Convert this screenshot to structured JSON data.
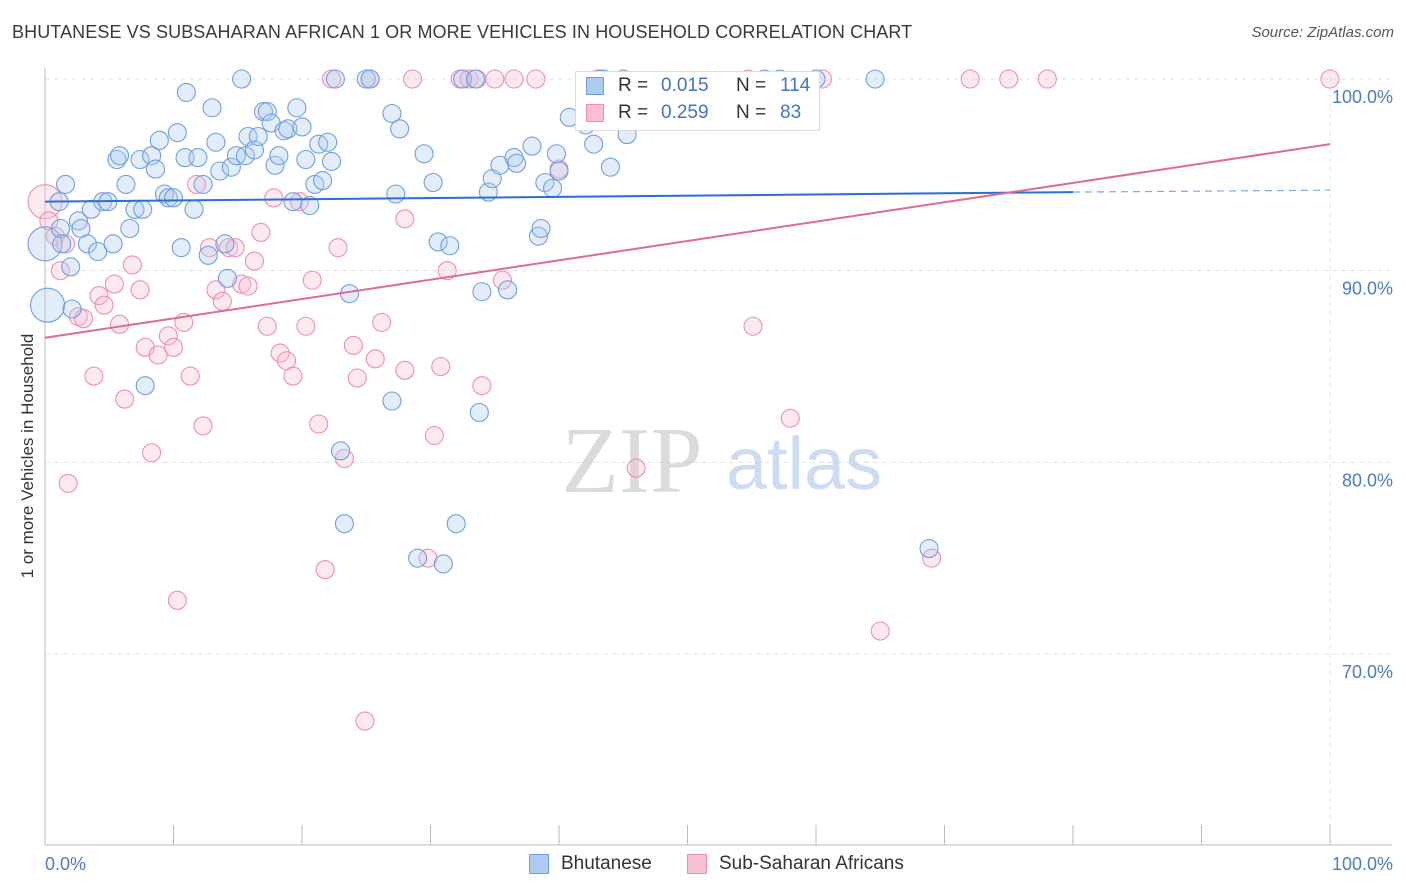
{
  "title": "BHUTANESE VS SUBSAHARAN AFRICAN 1 OR MORE VEHICLES IN HOUSEHOLD CORRELATION CHART",
  "source": "Source: ZipAtlas.com",
  "watermark": {
    "zip": "ZIP",
    "atlas": "atlas"
  },
  "legend_stats": [
    {
      "r_label": "R =",
      "r_value": "0.015",
      "n_label": "N =",
      "n_value": "114",
      "color": "#6f9fe0"
    },
    {
      "r_label": "R =",
      "r_value": "0.259",
      "n_label": "N =",
      "n_value": "83",
      "color": "#f08aaa"
    }
  ],
  "colors": {
    "blue_fill": "#aecbf0",
    "blue_stroke": "#6f9fe0",
    "blue_line": "#2a6fd6",
    "pink_fill": "#f7bfd0",
    "pink_stroke": "#ee8fae",
    "pink_line": "#e06a95",
    "tick_label": "#4a7cc4",
    "grid": "#e3e3e3"
  },
  "chart_data": {
    "type": "scatter",
    "title": "BHUTANESE VS SUBSAHARAN AFRICAN 1 OR MORE VEHICLES IN HOUSEHOLD CORRELATION CHART",
    "xlabel": "",
    "ylabel": "1 or more Vehicles in Household",
    "xlim": [
      0,
      100
    ],
    "ylim": [
      60.5,
      101
    ],
    "x_tick_labels": [
      {
        "value": 0,
        "label": "0.0%"
      },
      {
        "value": 100,
        "label": "100.0%"
      }
    ],
    "y_tick_labels": [
      {
        "value": 100,
        "label": "100.0%"
      },
      {
        "value": 90,
        "label": "90.0%"
      },
      {
        "value": 80,
        "label": "80.0%"
      },
      {
        "value": 70,
        "label": "70.0%"
      }
    ],
    "grid": true,
    "legend_position": "bottom",
    "series": [
      {
        "name": "Bhutanese",
        "color": "#6f9fe0",
        "trend": {
          "x": [
            0,
            80,
            100
          ],
          "y": [
            93.6,
            94.1,
            94.2
          ],
          "dashed_from": 80
        },
        "points": [
          {
            "x": 0.0,
            "y": 91.4,
            "big": true
          },
          {
            "x": 0.2,
            "y": 88.2,
            "big": true
          },
          {
            "x": 1.1,
            "y": 93.6
          },
          {
            "x": 1.2,
            "y": 92.2
          },
          {
            "x": 1.3,
            "y": 91.4
          },
          {
            "x": 1.6,
            "y": 94.5
          },
          {
            "x": 2.0,
            "y": 90.2
          },
          {
            "x": 2.1,
            "y": 88.0
          },
          {
            "x": 2.6,
            "y": 92.6
          },
          {
            "x": 2.8,
            "y": 92.2
          },
          {
            "x": 3.3,
            "y": 91.4
          },
          {
            "x": 3.6,
            "y": 93.2
          },
          {
            "x": 4.1,
            "y": 91.0
          },
          {
            "x": 4.5,
            "y": 93.6
          },
          {
            "x": 4.9,
            "y": 93.6
          },
          {
            "x": 5.3,
            "y": 91.4
          },
          {
            "x": 5.6,
            "y": 95.8
          },
          {
            "x": 5.8,
            "y": 96.0
          },
          {
            "x": 6.3,
            "y": 94.5
          },
          {
            "x": 6.6,
            "y": 92.2
          },
          {
            "x": 7.0,
            "y": 93.2
          },
          {
            "x": 7.4,
            "y": 95.8
          },
          {
            "x": 7.6,
            "y": 93.2
          },
          {
            "x": 7.8,
            "y": 84.0
          },
          {
            "x": 8.3,
            "y": 96.0
          },
          {
            "x": 8.6,
            "y": 95.3
          },
          {
            "x": 8.9,
            "y": 96.8
          },
          {
            "x": 9.3,
            "y": 94.0
          },
          {
            "x": 9.6,
            "y": 93.8
          },
          {
            "x": 10.0,
            "y": 93.8
          },
          {
            "x": 10.3,
            "y": 97.2
          },
          {
            "x": 10.6,
            "y": 91.2
          },
          {
            "x": 10.9,
            "y": 95.9
          },
          {
            "x": 11.0,
            "y": 99.3
          },
          {
            "x": 11.6,
            "y": 93.2
          },
          {
            "x": 11.9,
            "y": 95.9
          },
          {
            "x": 12.3,
            "y": 94.5
          },
          {
            "x": 12.7,
            "y": 90.8
          },
          {
            "x": 13.0,
            "y": 98.5
          },
          {
            "x": 13.3,
            "y": 96.7
          },
          {
            "x": 13.6,
            "y": 95.2
          },
          {
            "x": 14.0,
            "y": 91.4
          },
          {
            "x": 14.2,
            "y": 89.6
          },
          {
            "x": 14.5,
            "y": 95.4
          },
          {
            "x": 14.9,
            "y": 96.0
          },
          {
            "x": 15.3,
            "y": 100.0
          },
          {
            "x": 15.6,
            "y": 96.0
          },
          {
            "x": 15.8,
            "y": 97.0
          },
          {
            "x": 16.3,
            "y": 96.3
          },
          {
            "x": 16.6,
            "y": 97.0
          },
          {
            "x": 17.0,
            "y": 98.3
          },
          {
            "x": 17.3,
            "y": 98.3
          },
          {
            "x": 17.6,
            "y": 97.7
          },
          {
            "x": 17.9,
            "y": 95.5
          },
          {
            "x": 18.2,
            "y": 96.0
          },
          {
            "x": 18.6,
            "y": 97.3
          },
          {
            "x": 18.9,
            "y": 97.4
          },
          {
            "x": 19.3,
            "y": 93.6
          },
          {
            "x": 19.6,
            "y": 98.5
          },
          {
            "x": 20.0,
            "y": 97.5
          },
          {
            "x": 20.3,
            "y": 95.8
          },
          {
            "x": 20.6,
            "y": 93.4
          },
          {
            "x": 21.0,
            "y": 94.5
          },
          {
            "x": 21.3,
            "y": 96.6
          },
          {
            "x": 21.6,
            "y": 94.7
          },
          {
            "x": 22.0,
            "y": 96.7
          },
          {
            "x": 22.3,
            "y": 95.7
          },
          {
            "x": 22.6,
            "y": 100.0
          },
          {
            "x": 23.0,
            "y": 80.6
          },
          {
            "x": 23.3,
            "y": 76.8
          },
          {
            "x": 23.7,
            "y": 88.8
          },
          {
            "x": 25.0,
            "y": 100.0
          },
          {
            "x": 25.3,
            "y": 100.0
          },
          {
            "x": 27.0,
            "y": 83.2
          },
          {
            "x": 27.0,
            "y": 98.2
          },
          {
            "x": 27.3,
            "y": 94.0
          },
          {
            "x": 27.6,
            "y": 97.4
          },
          {
            "x": 29.0,
            "y": 75.0
          },
          {
            "x": 29.5,
            "y": 96.1
          },
          {
            "x": 30.2,
            "y": 94.6
          },
          {
            "x": 30.6,
            "y": 91.5
          },
          {
            "x": 31.0,
            "y": 74.7
          },
          {
            "x": 31.5,
            "y": 91.3
          },
          {
            "x": 32.0,
            "y": 76.8
          },
          {
            "x": 32.5,
            "y": 100.0
          },
          {
            "x": 33.5,
            "y": 100.0
          },
          {
            "x": 33.8,
            "y": 82.6
          },
          {
            "x": 34.0,
            "y": 88.9
          },
          {
            "x": 34.5,
            "y": 94.1
          },
          {
            "x": 34.8,
            "y": 94.8
          },
          {
            "x": 35.4,
            "y": 95.5
          },
          {
            "x": 36.0,
            "y": 89.0
          },
          {
            "x": 36.5,
            "y": 95.9
          },
          {
            "x": 36.7,
            "y": 95.6
          },
          {
            "x": 37.9,
            "y": 96.5
          },
          {
            "x": 38.4,
            "y": 91.8
          },
          {
            "x": 38.6,
            "y": 92.2
          },
          {
            "x": 38.9,
            "y": 94.6
          },
          {
            "x": 39.5,
            "y": 94.3
          },
          {
            "x": 39.8,
            "y": 96.1
          },
          {
            "x": 40.0,
            "y": 95.2
          },
          {
            "x": 40.8,
            "y": 98.0
          },
          {
            "x": 42.1,
            "y": 97.6
          },
          {
            "x": 42.7,
            "y": 96.6
          },
          {
            "x": 43.2,
            "y": 100.0
          },
          {
            "x": 43.5,
            "y": 100.0
          },
          {
            "x": 44.0,
            "y": 95.4
          },
          {
            "x": 45.0,
            "y": 100.0
          },
          {
            "x": 45.3,
            "y": 97.1
          },
          {
            "x": 56.0,
            "y": 100.0
          },
          {
            "x": 57.2,
            "y": 100.0
          },
          {
            "x": 60.0,
            "y": 100.0
          },
          {
            "x": 64.6,
            "y": 100.0
          },
          {
            "x": 68.8,
            "y": 75.5
          }
        ]
      },
      {
        "name": "Sub-Saharan Africans",
        "color": "#f08aaa",
        "trend": {
          "x": [
            0,
            100
          ],
          "y": [
            86.5,
            96.6
          ]
        },
        "points": [
          {
            "x": 0.0,
            "y": 93.6,
            "big": true
          },
          {
            "x": 0.3,
            "y": 92.6
          },
          {
            "x": 0.8,
            "y": 91.8
          },
          {
            "x": 1.2,
            "y": 90.0
          },
          {
            "x": 1.6,
            "y": 91.4
          },
          {
            "x": 1.8,
            "y": 78.9
          },
          {
            "x": 2.6,
            "y": 87.6
          },
          {
            "x": 3.0,
            "y": 87.5
          },
          {
            "x": 3.8,
            "y": 84.5
          },
          {
            "x": 4.2,
            "y": 88.7
          },
          {
            "x": 4.6,
            "y": 88.2
          },
          {
            "x": 5.4,
            "y": 89.3
          },
          {
            "x": 5.8,
            "y": 87.2
          },
          {
            "x": 6.2,
            "y": 83.3
          },
          {
            "x": 6.8,
            "y": 90.3
          },
          {
            "x": 7.4,
            "y": 89.0
          },
          {
            "x": 7.8,
            "y": 86.0
          },
          {
            "x": 8.3,
            "y": 80.5
          },
          {
            "x": 8.8,
            "y": 85.6
          },
          {
            "x": 9.6,
            "y": 86.6
          },
          {
            "x": 10.0,
            "y": 86.0
          },
          {
            "x": 10.3,
            "y": 72.8
          },
          {
            "x": 10.8,
            "y": 87.3
          },
          {
            "x": 11.3,
            "y": 84.5
          },
          {
            "x": 11.8,
            "y": 94.5
          },
          {
            "x": 12.3,
            "y": 81.9
          },
          {
            "x": 12.8,
            "y": 91.2
          },
          {
            "x": 13.3,
            "y": 89.0
          },
          {
            "x": 13.8,
            "y": 88.4
          },
          {
            "x": 14.3,
            "y": 91.2
          },
          {
            "x": 14.8,
            "y": 91.2
          },
          {
            "x": 15.3,
            "y": 89.3
          },
          {
            "x": 15.8,
            "y": 89.2
          },
          {
            "x": 16.3,
            "y": 90.5
          },
          {
            "x": 16.8,
            "y": 92.0
          },
          {
            "x": 17.3,
            "y": 87.1
          },
          {
            "x": 17.8,
            "y": 93.8
          },
          {
            "x": 18.3,
            "y": 85.7
          },
          {
            "x": 18.8,
            "y": 85.3
          },
          {
            "x": 19.3,
            "y": 84.5
          },
          {
            "x": 19.8,
            "y": 93.6
          },
          {
            "x": 20.3,
            "y": 87.1
          },
          {
            "x": 20.8,
            "y": 89.5
          },
          {
            "x": 21.3,
            "y": 82.0
          },
          {
            "x": 21.8,
            "y": 74.4
          },
          {
            "x": 22.3,
            "y": 100.0
          },
          {
            "x": 22.8,
            "y": 91.2
          },
          {
            "x": 23.3,
            "y": 80.2
          },
          {
            "x": 24.0,
            "y": 86.1
          },
          {
            "x": 24.3,
            "y": 84.4
          },
          {
            "x": 24.9,
            "y": 66.5
          },
          {
            "x": 25.3,
            "y": 100.0
          },
          {
            "x": 25.7,
            "y": 85.4
          },
          {
            "x": 26.2,
            "y": 87.3
          },
          {
            "x": 28.0,
            "y": 84.8
          },
          {
            "x": 28.0,
            "y": 92.7
          },
          {
            "x": 28.6,
            "y": 100.0
          },
          {
            "x": 29.8,
            "y": 75.0
          },
          {
            "x": 30.3,
            "y": 81.4
          },
          {
            "x": 30.8,
            "y": 85.0
          },
          {
            "x": 31.3,
            "y": 90.0
          },
          {
            "x": 32.3,
            "y": 100.0
          },
          {
            "x": 33.0,
            "y": 100.0
          },
          {
            "x": 33.6,
            "y": 100.0
          },
          {
            "x": 34.0,
            "y": 84.0
          },
          {
            "x": 35.0,
            "y": 100.0
          },
          {
            "x": 35.6,
            "y": 89.5
          },
          {
            "x": 36.5,
            "y": 100.0
          },
          {
            "x": 38.2,
            "y": 100.0
          },
          {
            "x": 40.0,
            "y": 95.3
          },
          {
            "x": 42.0,
            "y": 97.8
          },
          {
            "x": 43.0,
            "y": 100.0
          },
          {
            "x": 46.0,
            "y": 79.7
          },
          {
            "x": 54.7,
            "y": 100.0
          },
          {
            "x": 55.1,
            "y": 87.1
          },
          {
            "x": 58.0,
            "y": 82.3
          },
          {
            "x": 60.5,
            "y": 100.0
          },
          {
            "x": 65.0,
            "y": 71.2
          },
          {
            "x": 69.0,
            "y": 75.0
          },
          {
            "x": 72.0,
            "y": 100.0
          },
          {
            "x": 75.0,
            "y": 100.0
          },
          {
            "x": 78.0,
            "y": 100.0
          },
          {
            "x": 100.0,
            "y": 100.0
          }
        ]
      }
    ]
  }
}
